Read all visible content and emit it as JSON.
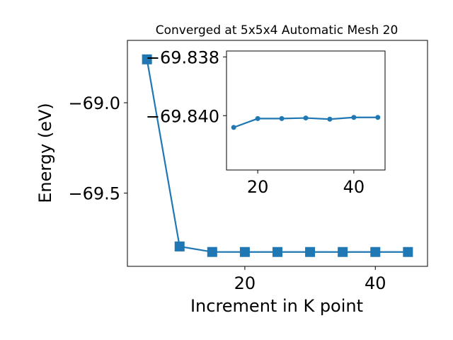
{
  "chart_data": [
    {
      "type": "line",
      "title": "Converged at 5x5x4 Automatic Mesh 20",
      "xlabel": "Increment in K point",
      "ylabel": "Energy (eV)",
      "x": [
        5,
        10,
        15,
        20,
        25,
        30,
        35,
        40,
        45
      ],
      "series": [
        {
          "values": [
            -68.76,
            -69.795,
            -69.8255,
            -69.8256,
            -69.8256,
            -69.8256,
            -69.8256,
            -69.8256,
            -69.8256
          ],
          "color": "#1f77b4",
          "marker": "square"
        }
      ],
      "xlim": [
        2.0,
        48.0
      ],
      "ylim": [
        -69.905,
        -68.655
      ],
      "xticks": [
        20,
        40
      ],
      "xtick_labels": [
        "20",
        "40"
      ],
      "yticks": [
        -69.0,
        -69.5
      ],
      "ytick_labels": [
        "−69.0",
        "−69.5"
      ],
      "grid": false
    },
    {
      "type": "line",
      "role": "inset",
      "x": [
        15,
        20,
        25,
        30,
        35,
        40,
        45
      ],
      "series": [
        {
          "values": [
            -69.8404,
            -69.8401,
            -69.8401,
            -69.84008,
            -69.84012,
            -69.84006,
            -69.84006
          ],
          "color": "#1f77b4",
          "marker": "circle"
        }
      ],
      "xlim": [
        13.5,
        46.5
      ],
      "ylim": [
        -69.84185,
        -69.8378
      ],
      "xticks": [
        20,
        40
      ],
      "xtick_labels": [
        "20",
        "40"
      ],
      "yticks": [
        -69.84,
        -69.838
      ],
      "ytick_labels": [
        "−69.840",
        "−69.838"
      ],
      "ytick_direction": "inverted"
    }
  ]
}
